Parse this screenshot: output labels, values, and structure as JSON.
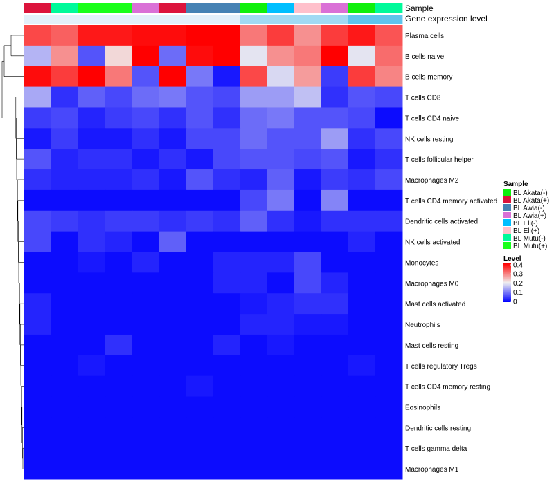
{
  "chart_data": {
    "type": "heatmap",
    "annotation_labels": [
      "Sample",
      "Gene expression level"
    ],
    "rows": [
      "Plasma cells",
      "B cells naive",
      "B cells memory",
      "T cells CD8",
      "T cells CD4 naive",
      "NK cells resting",
      "T cells follicular helper",
      "Macrophages M2",
      "T cells CD4 memory activated",
      "Dendritic cells activated",
      "NK cells activated",
      "Monocytes",
      "Macrophages M0",
      "Mast cells activated",
      "Neutrophils",
      "Mast cells resting",
      "T cells regulatory  Tregs",
      "T cells CD4 memory resting",
      "Eosinophils",
      "Dendritic cells resting",
      "T cells gamma delta",
      "Macrophages M1"
    ],
    "column_samples": [
      "BL Akata(+)",
      "BL Mutu(-)",
      "BL Mutu(+)",
      "BL Mutu(+)",
      "BL Awia(+)",
      "BL Akata(+)",
      "BL Awia(-)",
      "BL Awia(-)",
      "BL Akata(-)",
      "BL Eli(-)",
      "BL Eli(+)",
      "BL Awia(+)",
      "BL Akata(-)",
      "BL Mutu(-)"
    ],
    "values": [
      [
        0.34,
        0.32,
        0.38,
        0.38,
        0.39,
        0.39,
        0.4,
        0.42,
        0.3,
        0.35,
        0.28,
        0.35,
        0.38,
        0.33
      ],
      [
        0.15,
        0.28,
        0.07,
        0.22,
        0.42,
        0.09,
        0.39,
        0.43,
        0.19,
        0.28,
        0.3,
        0.43,
        0.19,
        0.31
      ],
      [
        0.39,
        0.35,
        0.43,
        0.3,
        0.07,
        0.42,
        0.1,
        0.02,
        0.34,
        0.18,
        0.27,
        0.05,
        0.35,
        0.29
      ],
      [
        0.14,
        0.04,
        0.08,
        0.06,
        0.09,
        0.1,
        0.07,
        0.06,
        0.13,
        0.13,
        0.16,
        0.04,
        0.07,
        0.06
      ],
      [
        0.05,
        0.06,
        0.03,
        0.05,
        0.06,
        0.04,
        0.07,
        0.04,
        0.09,
        0.1,
        0.07,
        0.07,
        0.06,
        0.01
      ],
      [
        0.02,
        0.05,
        0.02,
        0.02,
        0.04,
        0.02,
        0.06,
        0.06,
        0.09,
        0.07,
        0.07,
        0.13,
        0.04,
        0.06
      ],
      [
        0.07,
        0.03,
        0.04,
        0.04,
        0.02,
        0.04,
        0.02,
        0.06,
        0.07,
        0.07,
        0.06,
        0.07,
        0.02,
        0.04
      ],
      [
        0.04,
        0.03,
        0.03,
        0.03,
        0.04,
        0.02,
        0.07,
        0.04,
        0.03,
        0.08,
        0.02,
        0.05,
        0.04,
        0.06
      ],
      [
        0.01,
        0.01,
        0.01,
        0.01,
        0.01,
        0.01,
        0.01,
        0.01,
        0.06,
        0.1,
        0.01,
        0.11,
        0.01,
        0.01
      ],
      [
        0.06,
        0.05,
        0.04,
        0.05,
        0.05,
        0.04,
        0.05,
        0.04,
        0.08,
        0.04,
        0.02,
        0.04,
        0.04,
        0.04
      ],
      [
        0.06,
        0.01,
        0.04,
        0.03,
        0.01,
        0.08,
        0.01,
        0.01,
        0.01,
        0.01,
        0.01,
        0.01,
        0.03,
        0.01
      ],
      [
        0.01,
        0.01,
        0.02,
        0.01,
        0.03,
        0.01,
        0.01,
        0.03,
        0.03,
        0.03,
        0.06,
        0.01,
        0.01,
        0.01
      ],
      [
        0.01,
        0.01,
        0.01,
        0.01,
        0.01,
        0.01,
        0.01,
        0.03,
        0.03,
        0.01,
        0.06,
        0.03,
        0.01,
        0.01
      ],
      [
        0.03,
        0.01,
        0.01,
        0.01,
        0.01,
        0.01,
        0.01,
        0.01,
        0.02,
        0.03,
        0.04,
        0.04,
        0.01,
        0.01
      ],
      [
        0.03,
        0.01,
        0.01,
        0.01,
        0.01,
        0.01,
        0.01,
        0.01,
        0.03,
        0.03,
        0.02,
        0.02,
        0.01,
        0.01
      ],
      [
        0.01,
        0.01,
        0.01,
        0.04,
        0.01,
        0.01,
        0.01,
        0.03,
        0.01,
        0.02,
        0.01,
        0.01,
        0.01,
        0.01
      ],
      [
        0.01,
        0.01,
        0.02,
        0.01,
        0.01,
        0.01,
        0.01,
        0.01,
        0.01,
        0.01,
        0.01,
        0.01,
        0.02,
        0.01
      ],
      [
        0.01,
        0.01,
        0.01,
        0.01,
        0.01,
        0.01,
        0.02,
        0.01,
        0.01,
        0.01,
        0.01,
        0.01,
        0.01,
        0.01
      ],
      [
        0.01,
        0.01,
        0.01,
        0.01,
        0.01,
        0.01,
        0.01,
        0.01,
        0.01,
        0.01,
        0.01,
        0.01,
        0.01,
        0.01
      ],
      [
        0.01,
        0.01,
        0.01,
        0.01,
        0.01,
        0.01,
        0.01,
        0.01,
        0.01,
        0.01,
        0.01,
        0.01,
        0.01,
        0.01
      ],
      [
        0.01,
        0.01,
        0.01,
        0.01,
        0.01,
        0.01,
        0.01,
        0.01,
        0.01,
        0.01,
        0.01,
        0.01,
        0.01,
        0.01
      ],
      [
        0.01,
        0.01,
        0.01,
        0.01,
        0.01,
        0.01,
        0.01,
        0.01,
        0.01,
        0.01,
        0.01,
        0.01,
        0.01,
        0.01
      ]
    ],
    "gene_expression_level": [
      0.18,
      0.18,
      0.18,
      0.18,
      0.18,
      0.18,
      0.18,
      0.18,
      0.14,
      0.14,
      0.14,
      0.14,
      0.1,
      0.1
    ],
    "color_scale": {
      "min": 0,
      "max": 0.4,
      "low": "#0000ff",
      "mid": "#f0f0f0",
      "high": "#ff0000"
    },
    "legend_sample": {
      "title": "Sample",
      "entries": [
        {
          "label": "BL Akata(-)",
          "color": "#0ff00d"
        },
        {
          "label": "BL Akata(+)",
          "color": "#dc143c"
        },
        {
          "label": "BL Awia(-)",
          "color": "#4682b4"
        },
        {
          "label": "BL Awia(+)",
          "color": "#da70d6"
        },
        {
          "label": "BL Eli(-)",
          "color": "#00bfff"
        },
        {
          "label": "BL Eli(+)",
          "color": "#ffc0cb"
        },
        {
          "label": "BL Mutu(-)",
          "color": "#00fa9a"
        },
        {
          "label": "BL Mutu(+)",
          "color": "#1aff1a"
        }
      ]
    },
    "legend_level": {
      "title": "Level",
      "ticks": [
        "0.4",
        "0.3",
        "0.2",
        "0.1",
        "0"
      ]
    },
    "dendrogram": "row clustering tree (left)"
  }
}
